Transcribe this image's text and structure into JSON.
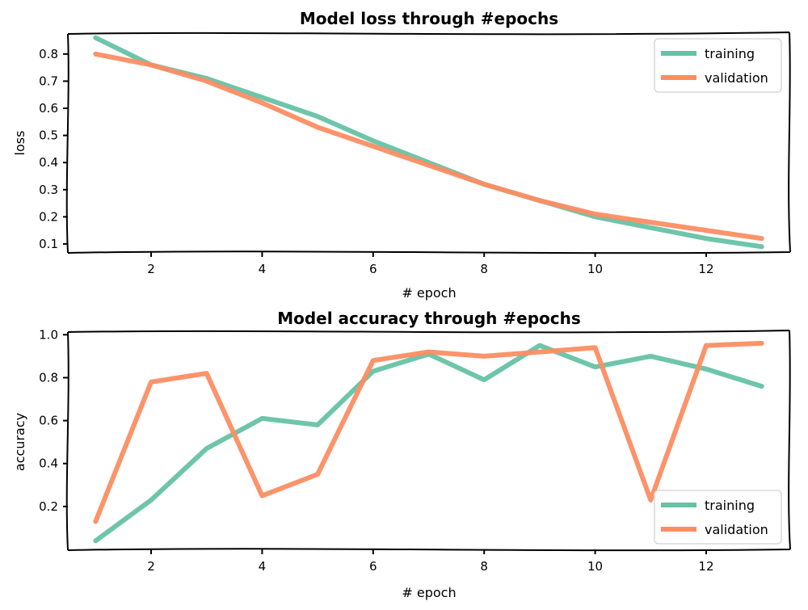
{
  "colors": {
    "training": "#66c2a5",
    "validation": "#fc8d62"
  },
  "chart_data": [
    {
      "type": "line",
      "title": "Model loss through #epochs",
      "xlabel": "# epoch",
      "ylabel": "loss",
      "xlim": [
        0.5,
        13.5
      ],
      "ylim": [
        0.07,
        0.88
      ],
      "xticks": [
        2,
        4,
        6,
        8,
        10,
        12
      ],
      "yticks": [
        0.1,
        0.2,
        0.3,
        0.4,
        0.5,
        0.6,
        0.7,
        0.8
      ],
      "ytick_labels": [
        "0.1",
        "0.2",
        "0.3",
        "0.4",
        "0.5",
        "0.6",
        "0.7",
        "0.8"
      ],
      "legend": "top-right",
      "x": [
        1,
        2,
        3,
        4,
        5,
        6,
        7,
        8,
        9,
        10,
        11,
        12,
        13
      ],
      "series": [
        {
          "name": "training",
          "values": [
            0.86,
            0.76,
            0.71,
            0.64,
            0.57,
            0.48,
            0.4,
            0.32,
            0.26,
            0.2,
            0.16,
            0.12,
            0.09
          ]
        },
        {
          "name": "validation",
          "values": [
            0.8,
            0.76,
            0.7,
            0.62,
            0.53,
            0.46,
            0.39,
            0.32,
            0.26,
            0.21,
            0.18,
            0.15,
            0.12
          ]
        }
      ]
    },
    {
      "type": "line",
      "title": "Model accuracy through #epochs",
      "xlabel": "# epoch",
      "ylabel": "accuracy",
      "xlim": [
        0.5,
        13.5
      ],
      "ylim": [
        0.0,
        1.02
      ],
      "xticks": [
        2,
        4,
        6,
        8,
        10,
        12
      ],
      "yticks": [
        0.2,
        0.4,
        0.6,
        0.8,
        1.0
      ],
      "ytick_labels": [
        "0.2",
        "0.4",
        "0.6",
        "0.8",
        "1.0"
      ],
      "legend": "bottom-right",
      "x": [
        1,
        2,
        3,
        4,
        5,
        6,
        7,
        8,
        9,
        10,
        11,
        12,
        13
      ],
      "series": [
        {
          "name": "training",
          "values": [
            0.04,
            0.23,
            0.47,
            0.61,
            0.58,
            0.83,
            0.91,
            0.79,
            0.95,
            0.85,
            0.9,
            0.84,
            0.76
          ]
        },
        {
          "name": "validation",
          "values": [
            0.13,
            0.78,
            0.82,
            0.25,
            0.35,
            0.88,
            0.92,
            0.9,
            0.92,
            0.94,
            0.23,
            0.95,
            0.96
          ]
        }
      ]
    }
  ]
}
